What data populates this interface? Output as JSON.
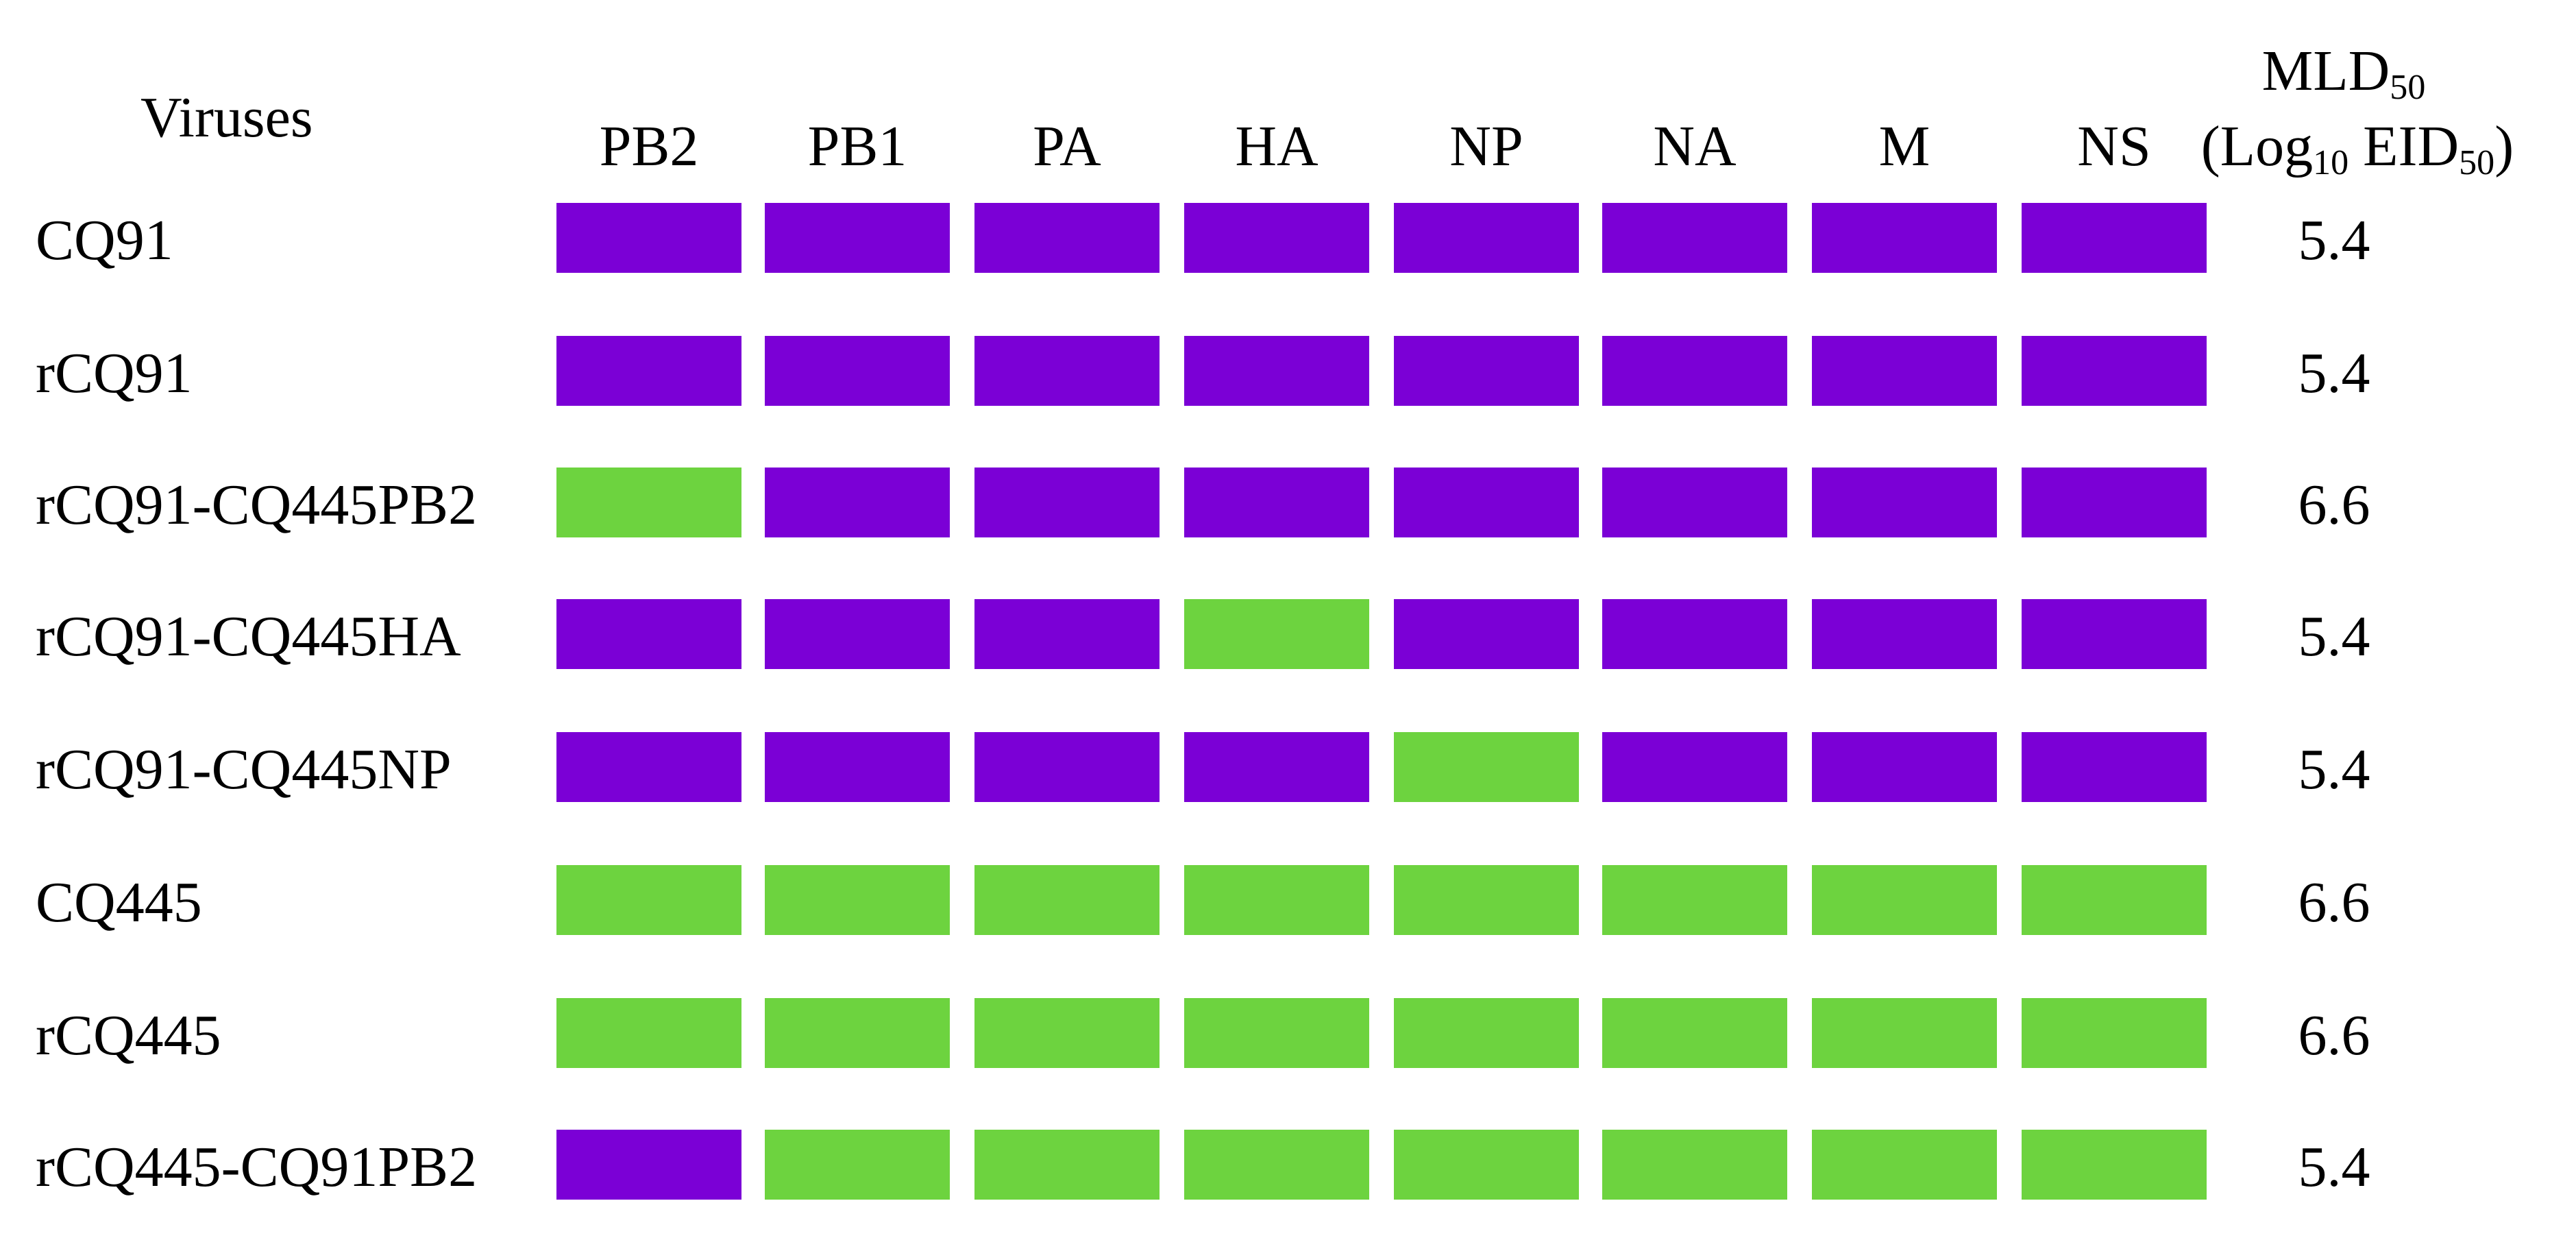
{
  "header": {
    "viruses": "Viruses",
    "mld_line1": "MLD",
    "mld_line1_sub": "50",
    "mld_line2_open": "(Log",
    "mld_line2_sub1": "10",
    "mld_line2_mid": " EID",
    "mld_line2_sub2": "50",
    "mld_line2_close": ")"
  },
  "segments": [
    "PB2",
    "PB1",
    "PA",
    "HA",
    "NP",
    "NA",
    "M",
    "NS"
  ],
  "colors": {
    "CQ91": "#7b00d6",
    "CQ445": "#6dd33f"
  },
  "rows": [
    {
      "name": "CQ91",
      "mld": "5.4",
      "origin": [
        "CQ91",
        "CQ91",
        "CQ91",
        "CQ91",
        "CQ91",
        "CQ91",
        "CQ91",
        "CQ91"
      ]
    },
    {
      "name": "rCQ91",
      "mld": "5.4",
      "origin": [
        "CQ91",
        "CQ91",
        "CQ91",
        "CQ91",
        "CQ91",
        "CQ91",
        "CQ91",
        "CQ91"
      ]
    },
    {
      "name": "rCQ91-CQ445PB2",
      "mld": "6.6",
      "origin": [
        "CQ445",
        "CQ91",
        "CQ91",
        "CQ91",
        "CQ91",
        "CQ91",
        "CQ91",
        "CQ91"
      ]
    },
    {
      "name": "rCQ91-CQ445HA",
      "mld": "5.4",
      "origin": [
        "CQ91",
        "CQ91",
        "CQ91",
        "CQ445",
        "CQ91",
        "CQ91",
        "CQ91",
        "CQ91"
      ]
    },
    {
      "name": "rCQ91-CQ445NP",
      "mld": "5.4",
      "origin": [
        "CQ91",
        "CQ91",
        "CQ91",
        "CQ91",
        "CQ445",
        "CQ91",
        "CQ91",
        "CQ91"
      ]
    },
    {
      "name": "CQ445",
      "mld": "6.6",
      "origin": [
        "CQ445",
        "CQ445",
        "CQ445",
        "CQ445",
        "CQ445",
        "CQ445",
        "CQ445",
        "CQ445"
      ]
    },
    {
      "name": "rCQ445",
      "mld": "6.6",
      "origin": [
        "CQ445",
        "CQ445",
        "CQ445",
        "CQ445",
        "CQ445",
        "CQ445",
        "CQ445",
        "CQ445"
      ]
    },
    {
      "name": "rCQ445-CQ91PB2",
      "mld": "5.4",
      "origin": [
        "CQ91",
        "CQ445",
        "CQ445",
        "CQ445",
        "CQ445",
        "CQ445",
        "CQ445",
        "CQ445"
      ]
    }
  ]
}
